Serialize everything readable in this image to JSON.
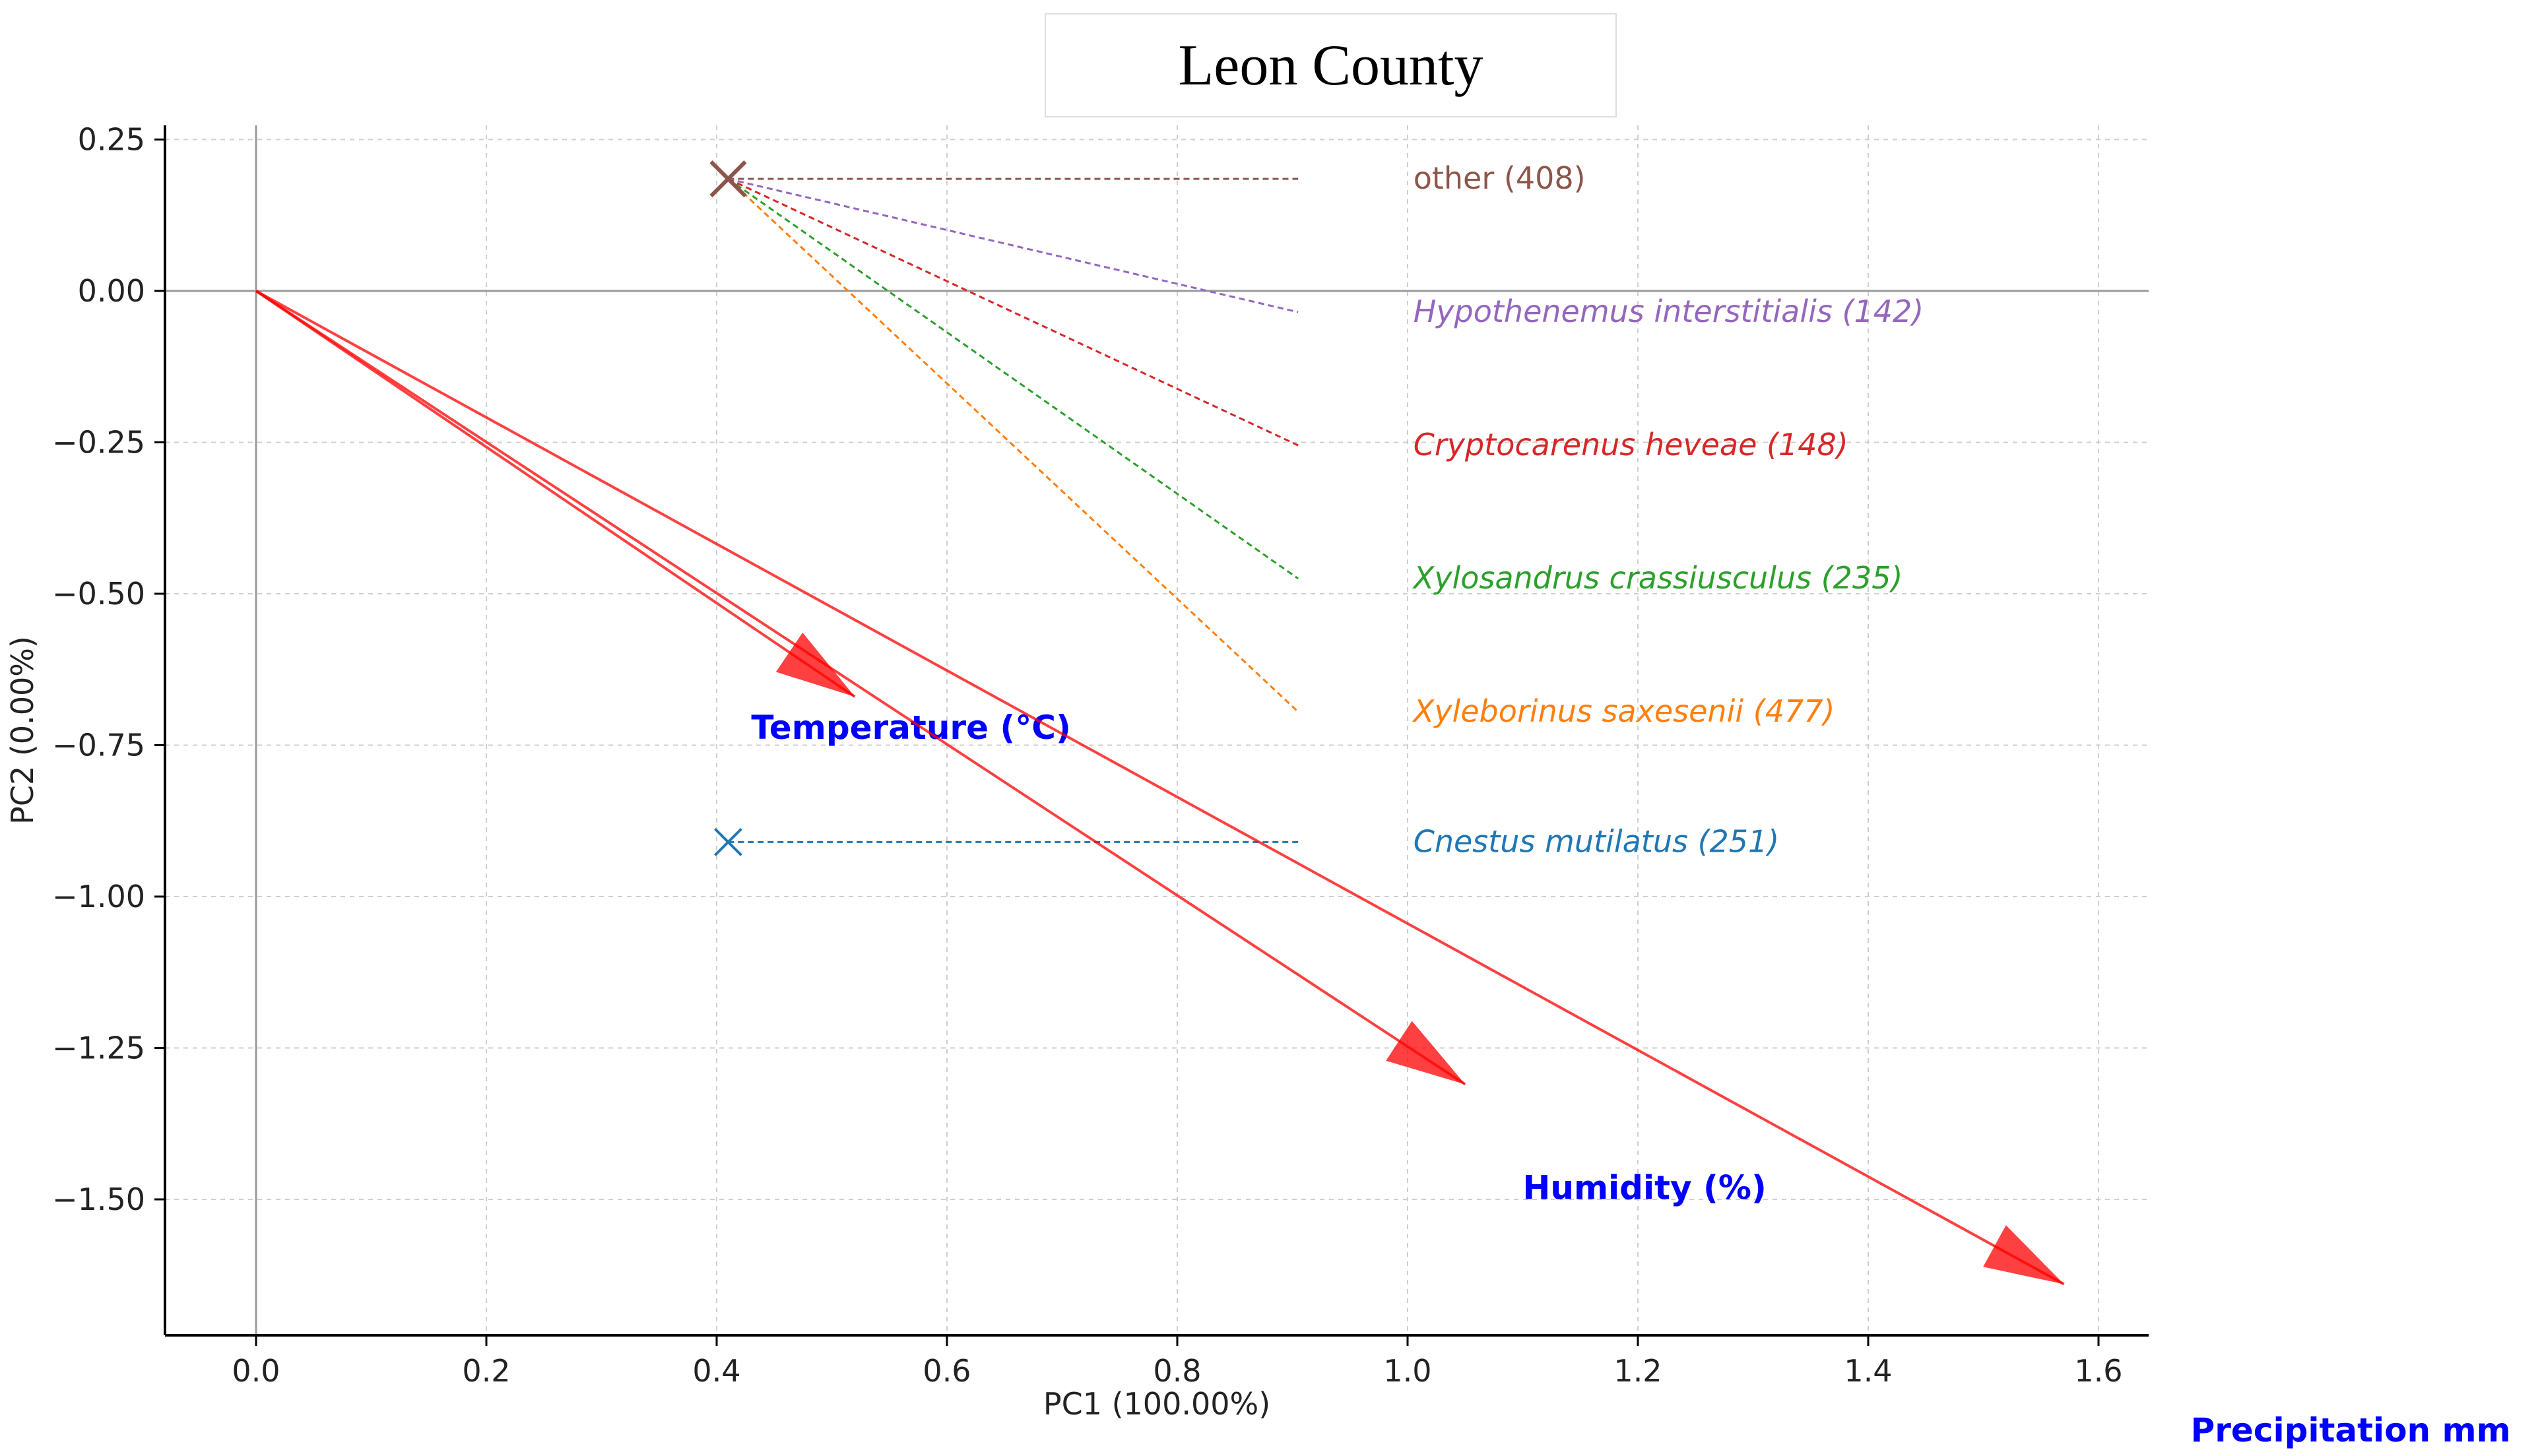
{
  "chart_data": {
    "type": "biplot",
    "title": "Leon County",
    "xlabel": "PC1 (100.00%)",
    "ylabel": "PC2 (0.00%)",
    "xlim": [
      -0.08,
      1.65
    ],
    "ylim": [
      -1.72,
      0.27
    ],
    "grid": true,
    "xticks": [
      0.0,
      0.2,
      0.4,
      0.6,
      0.8,
      1.0,
      1.2,
      1.4,
      1.6
    ],
    "xtick_labels": [
      "0.0",
      "0.2",
      "0.4",
      "0.6",
      "0.8",
      "1.0",
      "1.2",
      "1.4",
      "1.6"
    ],
    "yticks": [
      0.25,
      0.0,
      -0.25,
      -0.5,
      -0.75,
      -1.0,
      -1.25,
      -1.5
    ],
    "ytick_labels": [
      "0.25",
      "0.00",
      "−0.25",
      "−0.50",
      "−0.75",
      "−1.00",
      "−1.25",
      "−1.50"
    ],
    "points": [
      {
        "name": "other",
        "x": 0.41,
        "y": 0.185,
        "color": "#8c564b"
      },
      {
        "name": "Cnestus mutilatus",
        "x": 0.41,
        "y": -0.91,
        "color": "#1f77b4"
      }
    ],
    "species": [
      {
        "label": "other (408)",
        "italic": false,
        "color": "#8c564b",
        "from": [
          0.41,
          0.185
        ],
        "to": [
          0.905,
          0.185
        ],
        "label_pos": [
          1.005,
          0.185
        ]
      },
      {
        "label": "Hypothenemus interstitialis (142)",
        "italic": true,
        "color": "#9467bd",
        "from": [
          0.41,
          0.185
        ],
        "to": [
          0.905,
          -0.035
        ],
        "label_pos": [
          1.005,
          -0.035
        ]
      },
      {
        "label": "Cryptocarenus heveae (148)",
        "italic": true,
        "color": "#d62728",
        "from": [
          0.41,
          0.185
        ],
        "to": [
          0.905,
          -0.255
        ],
        "label_pos": [
          1.005,
          -0.255
        ]
      },
      {
        "label": "Xylosandrus crassiusculus (235)",
        "italic": true,
        "color": "#2ca02c",
        "from": [
          0.41,
          0.185
        ],
        "to": [
          0.905,
          -0.475
        ],
        "label_pos": [
          1.005,
          -0.475
        ]
      },
      {
        "label": "Xyleborinus saxesenii (477)",
        "italic": true,
        "color": "#ff7f0e",
        "from": [
          0.41,
          0.185
        ],
        "to": [
          0.905,
          -0.695
        ],
        "label_pos": [
          1.005,
          -0.695
        ]
      },
      {
        "label": "Cnestus mutilatus (251)",
        "italic": true,
        "color": "#1f77b4",
        "from": [
          0.905,
          -0.91
        ],
        "to": [
          0.41,
          -0.91
        ],
        "label_pos": [
          1.005,
          -0.91
        ]
      }
    ],
    "loadings": [
      {
        "name": "Temperature (°C)",
        "x": 0.52,
        "y": -0.67,
        "label_pos": [
          0.43,
          -0.72
        ]
      },
      {
        "name": "Humidity (%)",
        "x": 1.05,
        "y": -1.31,
        "label_pos": [
          1.1,
          -1.48
        ]
      },
      {
        "name": "Precipitation  mm",
        "x": 1.57,
        "y": -1.64,
        "label_pos": [
          1.68,
          -1.88
        ]
      }
    ],
    "arrow_color": "#ff0000",
    "loading_label_color": "#0000ff"
  }
}
